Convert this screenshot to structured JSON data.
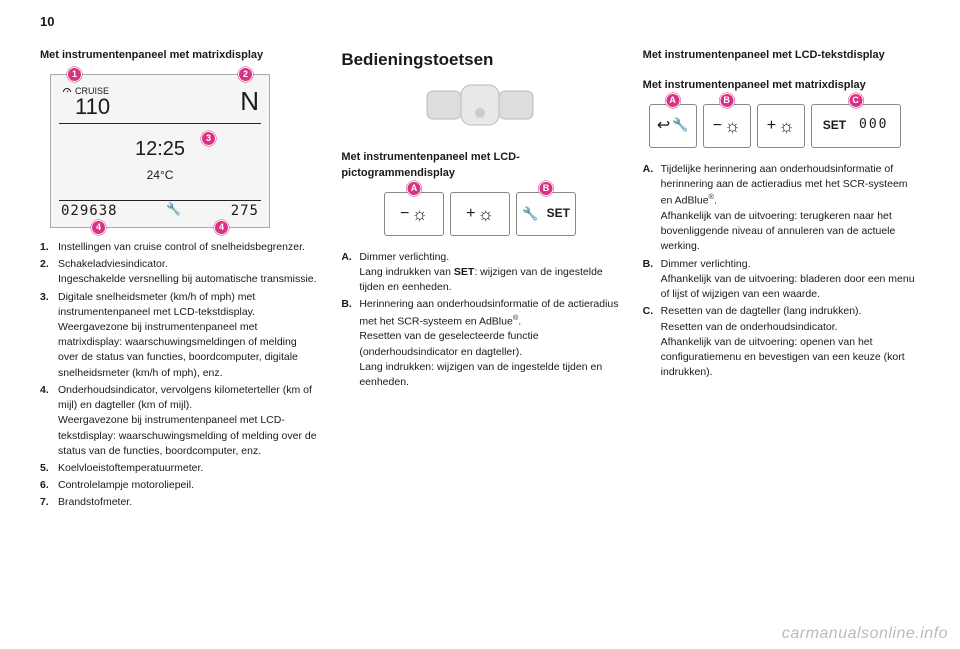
{
  "page_number": "10",
  "watermark": "carmanualsonline.info",
  "col1": {
    "subhead": "Met instrumentenpaneel met matrixdisplay",
    "fig": {
      "cruise_label": "CRUISE",
      "cruise_value": "110",
      "gear": "N",
      "time": "12:25",
      "temp": "24°C",
      "odo": "029638",
      "trip": "275",
      "callouts": {
        "c1": "1",
        "c2": "2",
        "c3": "3",
        "c4a": "4",
        "c4b": "4"
      }
    },
    "list": [
      {
        "n": "1.",
        "t": "Instellingen van cruise control of snelheidsbegrenzer."
      },
      {
        "n": "2.",
        "t": "Schakeladviesindicator.\nIngeschakelde versnelling bij automatische transmissie."
      },
      {
        "n": "3.",
        "t": "Digitale snelheidsmeter (km/h of mph) met instrumentenpaneel met LCD-tekstdisplay.\nWeergavezone bij instrumentenpaneel met matrixdisplay: waarschuwingsmeldingen of melding over de status van functies, boordcomputer, digitale snelheidsmeter (km/h of mph), enz."
      },
      {
        "n": "4.",
        "t": "Onderhoudsindicator, vervolgens kilometerteller (km of mijl) en dagteller (km of mijl).\nWeergavezone bij instrumentenpaneel met LCD-tekstdisplay: waarschuwingsmelding of melding over de status van de functies, boordcomputer, enz."
      },
      {
        "n": "5.",
        "t": "Koelvloeistoftemperatuurmeter."
      },
      {
        "n": "6.",
        "t": "Controlelampje motoroliepeil."
      },
      {
        "n": "7.",
        "t": "Brandstofmeter."
      }
    ]
  },
  "col2": {
    "h2": "Bedieningstoetsen",
    "subhead": "Met instrumentenpaneel met LCD-pictogrammendisplay",
    "callouts": {
      "A": "A",
      "B": "B"
    },
    "buttons": {
      "minus": "−",
      "plus": "+",
      "set": "SET"
    },
    "list": [
      {
        "n": "A.",
        "t": "Dimmer verlichting.\nLang indrukken van SET: wijzigen van de ingestelde tijden en eenheden."
      },
      {
        "n": "B.",
        "t": "Herinnering aan onderhoudsinformatie of de actieradius met het SCR-systeem en AdBlue®.\nResetten van de geselecteerde functie (onderhoudsindicator en dagteller).\nLang indrukken: wijzigen van de ingestelde tijden en eenheden."
      }
    ]
  },
  "col3": {
    "head1": "Met instrumentenpaneel met LCD-tekstdisplay",
    "head2": "Met instrumentenpaneel met matrixdisplay",
    "callouts": {
      "A": "A",
      "B": "B",
      "C": "C"
    },
    "buttons": {
      "minus": "−",
      "plus": "+",
      "set": "SET",
      "zeros": "000"
    },
    "list": [
      {
        "n": "A.",
        "t": "Tijdelijke herinnering aan onderhoudsinformatie of herinnering aan de actieradius met het SCR-systeem en AdBlue®.\nAfhankelijk van de uitvoering: terugkeren naar het bovenliggende niveau of annuleren van de actuele werking."
      },
      {
        "n": "B.",
        "t": "Dimmer verlichting.\nAfhankelijk van de uitvoering: bladeren door een menu of lijst of wijzigen van een waarde."
      },
      {
        "n": "C.",
        "t": "Resetten van de dagteller (lang indrukken).\nResetten van de onderhoudsindicator.\nAfhankelijk van de uitvoering: openen van het configuratiemenu en bevestigen van een keuze (kort indrukken)."
      }
    ]
  },
  "colors": {
    "callout_bg": "#d63384",
    "callout_fg": "#ffffff",
    "fig_border": "#aaaaaa",
    "fig_bg": "#f5f5f5"
  }
}
